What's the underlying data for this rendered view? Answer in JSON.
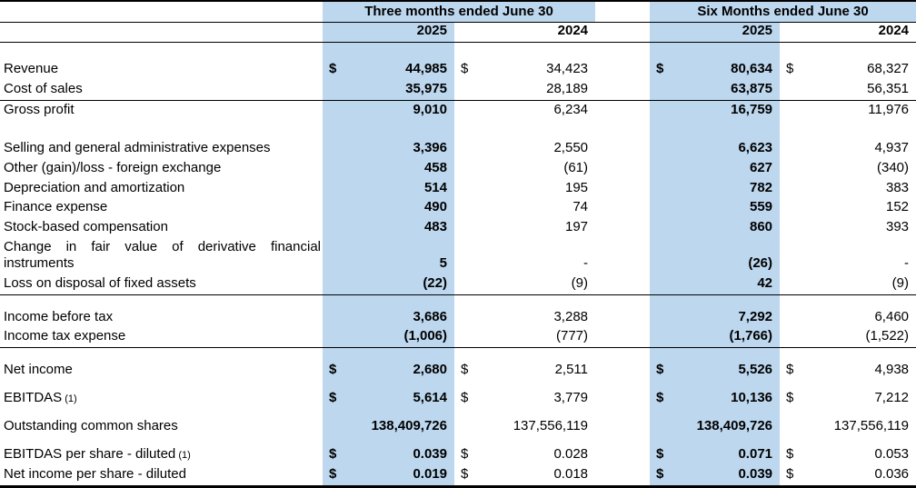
{
  "page": {
    "background": "#ffffff",
    "highlight_blue": "#BDD7EE",
    "border_color": "#000000"
  },
  "table": {
    "column_groups": [
      {
        "label": "Three months ended June 30",
        "years": [
          "2025",
          "2024"
        ]
      },
      {
        "label": "Six Months ended June 30",
        "years": [
          "2025",
          "2024"
        ]
      }
    ],
    "rows": [
      {
        "type": "spacer"
      },
      {
        "label": "Revenue",
        "dollar": true,
        "values": [
          "44,985",
          "34,423",
          "80,634",
          "68,327"
        ]
      },
      {
        "label": "Cost of sales",
        "values": [
          "35,975",
          "28,189",
          "63,875",
          "56,351"
        ],
        "underline": true
      },
      {
        "label": "Gross profit",
        "values": [
          "9,010",
          "6,234",
          "16,759",
          "11,976"
        ]
      },
      {
        "type": "spacer"
      },
      {
        "label": "Selling and general administrative expenses",
        "values": [
          "3,396",
          "2,550",
          "6,623",
          "4,937"
        ]
      },
      {
        "label": "Other (gain)/loss - foreign exchange",
        "values": [
          "458",
          "(61)",
          "627",
          "(340)"
        ]
      },
      {
        "label": "Depreciation and amortization",
        "values": [
          "514",
          "195",
          "782",
          "383"
        ]
      },
      {
        "label": "Finance expense",
        "values": [
          "490",
          "74",
          "559",
          "152"
        ]
      },
      {
        "label": "Stock-based compensation",
        "values": [
          "483",
          "197",
          "860",
          "393"
        ]
      },
      {
        "label": "Change in fair value of derivative financial instruments",
        "values": [
          "5",
          "-",
          "(26)",
          "-"
        ],
        "two_line": true
      },
      {
        "label": "Loss on disposal of fixed assets",
        "values": [
          "(22)",
          "(9)",
          "42",
          "(9)"
        ],
        "underline": true
      },
      {
        "type": "spacer",
        "size": "mid"
      },
      {
        "label": "Income before tax",
        "values": [
          "3,686",
          "3,288",
          "7,292",
          "6,460"
        ]
      },
      {
        "label": "Income tax expense",
        "values": [
          "(1,006)",
          "(777)",
          "(1,766)",
          "(1,522)"
        ],
        "underline": true
      },
      {
        "type": "spacer",
        "size": "mid"
      },
      {
        "label": "Net income",
        "dollar": true,
        "values": [
          "2,680",
          "2,511",
          "5,526",
          "4,938"
        ]
      },
      {
        "type": "spacer",
        "size": "small"
      },
      {
        "label": "EBITDAS",
        "label_suffix": "(1)",
        "dollar": true,
        "values": [
          "5,614",
          "3,779",
          "10,136",
          "7,212"
        ]
      },
      {
        "type": "spacer",
        "size": "small"
      },
      {
        "label": "Outstanding common shares",
        "values": [
          "138,409,726",
          "137,556,119",
          "138,409,726",
          "137,556,119"
        ]
      },
      {
        "type": "spacer",
        "size": "small"
      },
      {
        "label": "EBITDAS per share - diluted",
        "label_suffix": "(1)",
        "dollar": true,
        "values": [
          "0.039",
          "0.028",
          "0.071",
          "0.053"
        ]
      },
      {
        "label": "Net income per share - diluted",
        "dollar": true,
        "values": [
          "0.019",
          "0.018",
          "0.039",
          "0.036"
        ]
      }
    ]
  }
}
